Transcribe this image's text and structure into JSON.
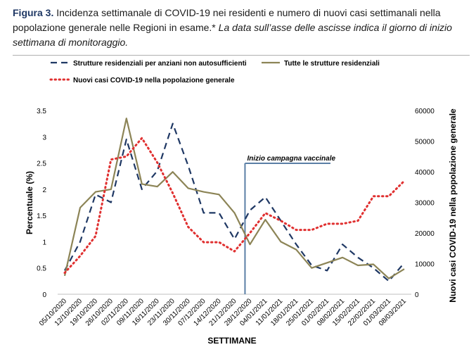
{
  "caption": {
    "label": "Figura 3.",
    "text": " Incidenza settimanale di COVID-19 nei residenti e numero di nuovi casi settimanali nella popolazione generale nelle Regioni in esame.*",
    "note": " La data sull’asse delle ascisse indica il giorno di inizio settimana di monitoraggio."
  },
  "chart_data": {
    "type": "line",
    "xlabel": "SETTIMANE",
    "ylabel": "Percentuale (%)",
    "y2label": "Nuovi casi COVID-19 nella popolazione generale",
    "ylim": [
      0,
      3.5
    ],
    "y2lim": [
      0,
      60000
    ],
    "yticks": [
      "0",
      "0.5",
      "1",
      "1.5",
      "2",
      "2.5",
      "3",
      "3.5"
    ],
    "y2ticks": [
      "0",
      "10000",
      "20000",
      "30000",
      "40000",
      "50000",
      "60000"
    ],
    "categories": [
      "05/10/2020",
      "12/10/2020",
      "19/10/2020",
      "26/10/2020",
      "02/11/2020",
      "09/11/2020",
      "16/11/2020",
      "23/11/2020",
      "30/11/2020",
      "07/12/2020",
      "14/12/2020",
      "21/12/2020",
      "28/12/2020",
      "04/01/2021",
      "11/01/2021",
      "18/01/2021",
      "25/01/2021",
      "01/02/2021",
      "08/02/2021",
      "15/02/2021",
      "22/02/2021",
      "01/03/2021",
      "08/03/2021"
    ],
    "legend_position": "top",
    "series": [
      {
        "name": "Strutture residenziali per anziani non autosufficienti",
        "axis": "left",
        "color": "#1f3864",
        "style": "dashed",
        "values": [
          0.45,
          1.0,
          1.9,
          1.75,
          2.95,
          2.0,
          2.35,
          3.25,
          2.45,
          1.55,
          1.55,
          1.05,
          1.6,
          1.85,
          1.4,
          0.95,
          0.55,
          0.45,
          0.95,
          0.7,
          0.5,
          0.25,
          0.6
        ]
      },
      {
        "name": "Tutte le strutture residenziali",
        "axis": "left",
        "color": "#8c8456",
        "style": "solid",
        "values": [
          0.35,
          1.65,
          1.95,
          2.0,
          3.35,
          2.1,
          2.05,
          2.33,
          2.02,
          1.95,
          1.9,
          1.55,
          0.95,
          1.42,
          1.0,
          0.85,
          0.5,
          0.6,
          0.7,
          0.55,
          0.57,
          0.3,
          0.48
        ]
      },
      {
        "name": "Nuovi casi COVID-19 nella popolazione generale",
        "axis": "right",
        "color": "#e03030",
        "style": "dotted",
        "values": [
          7000,
          12500,
          19000,
          44000,
          45000,
          51000,
          43000,
          33000,
          22000,
          17000,
          17000,
          14000,
          20000,
          26500,
          24000,
          21000,
          21000,
          23000,
          23000,
          24000,
          32000,
          32000,
          37000
        ]
      }
    ],
    "annotation": {
      "text": "Inizio campagna vaccinale",
      "at": "28/12/2020"
    }
  }
}
